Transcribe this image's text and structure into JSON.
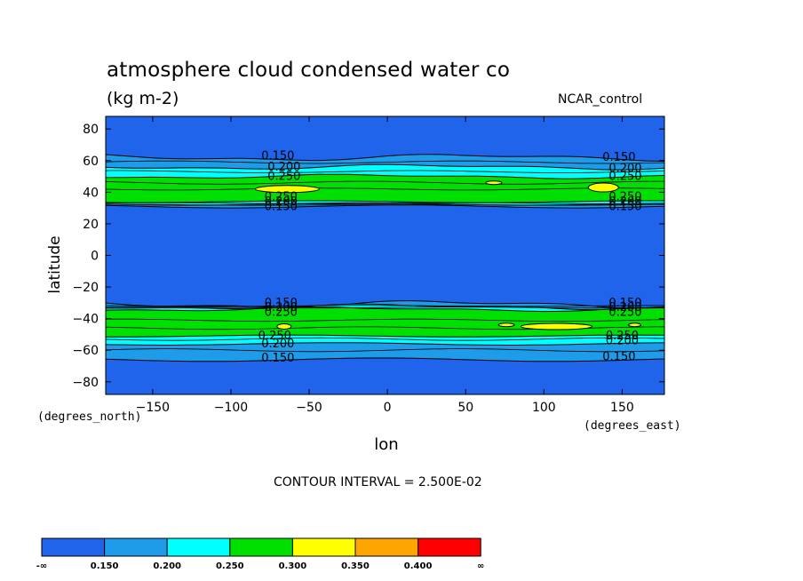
{
  "header": {
    "title": "atmosphere cloud condensed water co",
    "units": "(kg m-2)",
    "model": "NCAR_control"
  },
  "axes": {
    "ylabel": "latitude",
    "xlabel": "lon",
    "y_units": "(degrees_north)",
    "x_units": "(degrees_east)"
  },
  "contour_interval": "CONTOUR INTERVAL = 2.500E-02",
  "colors": {
    "level_below_150": "#1f64ea",
    "level_150_200": "#1e9be9",
    "level_200_250": "#00ffff",
    "level_250_300": "#00e000",
    "level_300_350": "#ffff00",
    "level_350_400": "#ffa500",
    "level_above_400": "#ff0000"
  },
  "chart_data": {
    "type": "heatmap",
    "subtype": "filled-contour",
    "xlim": [
      -180,
      177
    ],
    "ylim": [
      -88,
      88
    ],
    "x_ticks": [
      -150,
      -100,
      -50,
      0,
      50,
      100,
      150
    ],
    "y_ticks": [
      80,
      60,
      40,
      20,
      0,
      -20,
      -40,
      -60,
      -80
    ],
    "x_tick_labels": [
      "-150",
      "-100",
      "-50",
      "0",
      "50",
      "100",
      "150"
    ],
    "y_tick_labels": [
      "80",
      "60",
      "40",
      "20",
      "0",
      "-20",
      "-40",
      "-60",
      "-80"
    ],
    "colorbar": {
      "levels": [
        "-∞",
        "0.150",
        "0.200",
        "0.250",
        "0.300",
        "0.350",
        "0.400",
        "∞"
      ],
      "colors": [
        "#1f64ea",
        "#1e9be9",
        "#00ffff",
        "#00e000",
        "#ffff00",
        "#ffa500",
        "#ff0000"
      ]
    },
    "contour_labels": [
      {
        "text": "0.150",
        "lon": -70,
        "lat": 63
      },
      {
        "text": "0.200",
        "lon": -66,
        "lat": 56
      },
      {
        "text": "0.250",
        "lon": -66,
        "lat": 50
      },
      {
        "text": "0.250",
        "lon": -68,
        "lat": 37
      },
      {
        "text": "0.200",
        "lon": -68,
        "lat": 34
      },
      {
        "text": "0.150",
        "lon": -68,
        "lat": 31
      },
      {
        "text": "0.150",
        "lon": 148,
        "lat": 62
      },
      {
        "text": "0.200",
        "lon": 152,
        "lat": 55
      },
      {
        "text": "0.250",
        "lon": 152,
        "lat": 50
      },
      {
        "text": "0.250",
        "lon": 152,
        "lat": 37
      },
      {
        "text": "0.200",
        "lon": 152,
        "lat": 34
      },
      {
        "text": "0.150",
        "lon": 152,
        "lat": 31
      },
      {
        "text": "0.150",
        "lon": -68,
        "lat": -30
      },
      {
        "text": "0.200",
        "lon": -68,
        "lat": -33
      },
      {
        "text": "0.250",
        "lon": -68,
        "lat": -36
      },
      {
        "text": "0.250",
        "lon": -72,
        "lat": -51
      },
      {
        "text": "0.200",
        "lon": -70,
        "lat": -56
      },
      {
        "text": "0.150",
        "lon": -70,
        "lat": -65
      },
      {
        "text": "0.150",
        "lon": 152,
        "lat": -30
      },
      {
        "text": "0.200",
        "lon": 152,
        "lat": -33
      },
      {
        "text": "0.250",
        "lon": 152,
        "lat": -36
      },
      {
        "text": "0.250",
        "lon": 150,
        "lat": -51
      },
      {
        "text": "0.200",
        "lon": 150,
        "lat": -54
      },
      {
        "text": "0.150",
        "lon": 148,
        "lat": -64
      }
    ]
  }
}
